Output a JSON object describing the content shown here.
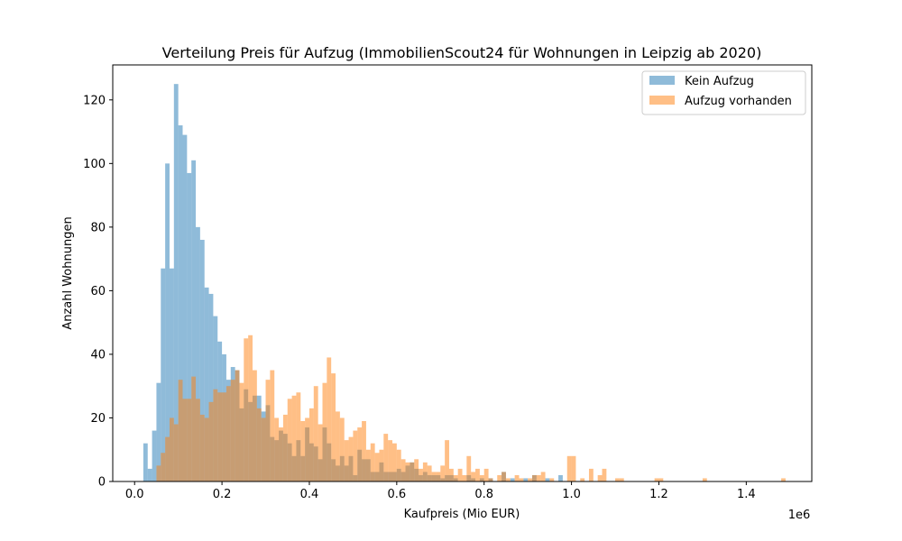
{
  "chart_data": {
    "type": "histogram",
    "title": "Verteilung Preis für Aufzug (ImmobilienScout24 für Wohnungen in Leipzig ab 2020)",
    "xlabel": "Kaufpreis (Mio EUR)",
    "ylabel": "Anzahl Wohnungen",
    "x_offset_label": "1e6",
    "xlim": [
      -50000,
      1550000
    ],
    "ylim": [
      0,
      131
    ],
    "x_ticks": [
      0,
      200000,
      400000,
      600000,
      800000,
      1000000,
      1200000,
      1400000
    ],
    "x_tick_labels": [
      "0.0",
      "0.2",
      "0.4",
      "0.6",
      "0.8",
      "1.0",
      "1.2",
      "1.4"
    ],
    "y_ticks": [
      0,
      20,
      40,
      60,
      80,
      100,
      120
    ],
    "y_tick_labels": [
      "0",
      "20",
      "40",
      "60",
      "80",
      "100",
      "120"
    ],
    "grid": false,
    "legend_position": "top-right",
    "series": [
      {
        "name": "Kein Aufzug",
        "color": "#1f77b4",
        "alpha": 0.5,
        "bins": [
          [
            20000,
            30000,
            12
          ],
          [
            30000,
            40000,
            4
          ],
          [
            40000,
            50000,
            16
          ],
          [
            50000,
            60000,
            31
          ],
          [
            60000,
            70000,
            67
          ],
          [
            70000,
            80000,
            100
          ],
          [
            80000,
            90000,
            67
          ],
          [
            90000,
            100000,
            125
          ],
          [
            100000,
            110000,
            112
          ],
          [
            110000,
            120000,
            109
          ],
          [
            120000,
            130000,
            97
          ],
          [
            130000,
            140000,
            101
          ],
          [
            140000,
            150000,
            80
          ],
          [
            150000,
            160000,
            76
          ],
          [
            160000,
            170000,
            61
          ],
          [
            170000,
            180000,
            59
          ],
          [
            180000,
            190000,
            52
          ],
          [
            190000,
            200000,
            44
          ],
          [
            200000,
            210000,
            40
          ],
          [
            210000,
            220000,
            32
          ],
          [
            220000,
            230000,
            36
          ],
          [
            230000,
            240000,
            35
          ],
          [
            240000,
            250000,
            23
          ],
          [
            250000,
            260000,
            29
          ],
          [
            260000,
            270000,
            25
          ],
          [
            270000,
            280000,
            27
          ],
          [
            280000,
            290000,
            27
          ],
          [
            290000,
            300000,
            22
          ],
          [
            300000,
            310000,
            24
          ],
          [
            310000,
            320000,
            14
          ],
          [
            320000,
            330000,
            13
          ],
          [
            330000,
            340000,
            16
          ],
          [
            340000,
            350000,
            15
          ],
          [
            350000,
            360000,
            12
          ],
          [
            360000,
            370000,
            8
          ],
          [
            370000,
            380000,
            13
          ],
          [
            380000,
            390000,
            8
          ],
          [
            390000,
            400000,
            17
          ],
          [
            400000,
            410000,
            12
          ],
          [
            410000,
            420000,
            11
          ],
          [
            420000,
            430000,
            7
          ],
          [
            430000,
            440000,
            17
          ],
          [
            440000,
            450000,
            12
          ],
          [
            450000,
            460000,
            7
          ],
          [
            460000,
            470000,
            5
          ],
          [
            470000,
            480000,
            8
          ],
          [
            480000,
            490000,
            5
          ],
          [
            490000,
            500000,
            8
          ],
          [
            500000,
            510000,
            2
          ],
          [
            510000,
            520000,
            10
          ],
          [
            520000,
            530000,
            7
          ],
          [
            530000,
            540000,
            7
          ],
          [
            540000,
            550000,
            3
          ],
          [
            550000,
            560000,
            3
          ],
          [
            560000,
            570000,
            6
          ],
          [
            570000,
            580000,
            3
          ],
          [
            580000,
            590000,
            3
          ],
          [
            590000,
            600000,
            3
          ],
          [
            600000,
            610000,
            4
          ],
          [
            610000,
            620000,
            3
          ],
          [
            620000,
            630000,
            5
          ],
          [
            630000,
            640000,
            6
          ],
          [
            640000,
            650000,
            4
          ],
          [
            650000,
            660000,
            2
          ],
          [
            660000,
            670000,
            3
          ],
          [
            670000,
            680000,
            2
          ],
          [
            680000,
            690000,
            2
          ],
          [
            690000,
            700000,
            2
          ],
          [
            700000,
            710000,
            1
          ],
          [
            710000,
            720000,
            2
          ],
          [
            720000,
            730000,
            2
          ],
          [
            730000,
            740000,
            1
          ],
          [
            760000,
            770000,
            2
          ],
          [
            770000,
            780000,
            1
          ],
          [
            790000,
            800000,
            1
          ],
          [
            810000,
            820000,
            1
          ],
          [
            840000,
            850000,
            3
          ],
          [
            860000,
            870000,
            1
          ],
          [
            890000,
            900000,
            1
          ],
          [
            910000,
            920000,
            2
          ],
          [
            940000,
            950000,
            1
          ],
          [
            970000,
            980000,
            2
          ]
        ]
      },
      {
        "name": "Aufzug vorhanden",
        "color": "#ff7f0e",
        "alpha": 0.5,
        "bins": [
          [
            50000,
            60000,
            5
          ],
          [
            60000,
            70000,
            9
          ],
          [
            70000,
            80000,
            14
          ],
          [
            80000,
            90000,
            20
          ],
          [
            90000,
            100000,
            18
          ],
          [
            100000,
            110000,
            32
          ],
          [
            110000,
            120000,
            26
          ],
          [
            120000,
            130000,
            26
          ],
          [
            130000,
            140000,
            33
          ],
          [
            140000,
            150000,
            26
          ],
          [
            150000,
            160000,
            21
          ],
          [
            160000,
            170000,
            20
          ],
          [
            170000,
            180000,
            25
          ],
          [
            180000,
            190000,
            29
          ],
          [
            190000,
            200000,
            28
          ],
          [
            200000,
            210000,
            28
          ],
          [
            210000,
            220000,
            30
          ],
          [
            220000,
            230000,
            32
          ],
          [
            230000,
            240000,
            35
          ],
          [
            240000,
            250000,
            31
          ],
          [
            250000,
            260000,
            45
          ],
          [
            260000,
            270000,
            46
          ],
          [
            270000,
            280000,
            35
          ],
          [
            280000,
            290000,
            23
          ],
          [
            290000,
            300000,
            20
          ],
          [
            300000,
            310000,
            32
          ],
          [
            310000,
            320000,
            35
          ],
          [
            320000,
            330000,
            20
          ],
          [
            330000,
            340000,
            17
          ],
          [
            340000,
            350000,
            21
          ],
          [
            350000,
            360000,
            26
          ],
          [
            360000,
            370000,
            27
          ],
          [
            370000,
            380000,
            28
          ],
          [
            380000,
            390000,
            19
          ],
          [
            390000,
            400000,
            20
          ],
          [
            400000,
            410000,
            23
          ],
          [
            410000,
            420000,
            30
          ],
          [
            420000,
            430000,
            18
          ],
          [
            430000,
            440000,
            31
          ],
          [
            440000,
            450000,
            39
          ],
          [
            450000,
            460000,
            34
          ],
          [
            460000,
            470000,
            22
          ],
          [
            470000,
            480000,
            20
          ],
          [
            480000,
            490000,
            13
          ],
          [
            490000,
            500000,
            14
          ],
          [
            500000,
            510000,
            16
          ],
          [
            510000,
            520000,
            17
          ],
          [
            520000,
            530000,
            19
          ],
          [
            530000,
            540000,
            10
          ],
          [
            540000,
            550000,
            12
          ],
          [
            550000,
            560000,
            9
          ],
          [
            560000,
            570000,
            10
          ],
          [
            570000,
            580000,
            15
          ],
          [
            580000,
            590000,
            13
          ],
          [
            590000,
            600000,
            12
          ],
          [
            600000,
            610000,
            10
          ],
          [
            610000,
            620000,
            7
          ],
          [
            620000,
            630000,
            6
          ],
          [
            630000,
            640000,
            6
          ],
          [
            640000,
            650000,
            7
          ],
          [
            650000,
            660000,
            4
          ],
          [
            660000,
            670000,
            6
          ],
          [
            670000,
            680000,
            5
          ],
          [
            680000,
            690000,
            3
          ],
          [
            690000,
            700000,
            3
          ],
          [
            700000,
            710000,
            5
          ],
          [
            710000,
            720000,
            13
          ],
          [
            720000,
            730000,
            4
          ],
          [
            730000,
            740000,
            2
          ],
          [
            740000,
            750000,
            4
          ],
          [
            750000,
            760000,
            2
          ],
          [
            760000,
            770000,
            8
          ],
          [
            770000,
            780000,
            3
          ],
          [
            780000,
            790000,
            4
          ],
          [
            790000,
            800000,
            2
          ],
          [
            800000,
            810000,
            4
          ],
          [
            810000,
            820000,
            1
          ],
          [
            830000,
            840000,
            2
          ],
          [
            840000,
            850000,
            3
          ],
          [
            850000,
            860000,
            1
          ],
          [
            870000,
            880000,
            2
          ],
          [
            880000,
            890000,
            1
          ],
          [
            900000,
            910000,
            1
          ],
          [
            910000,
            920000,
            2
          ],
          [
            920000,
            930000,
            2
          ],
          [
            930000,
            940000,
            3
          ],
          [
            950000,
            960000,
            1
          ],
          [
            990000,
            1000000,
            8
          ],
          [
            1000000,
            1010000,
            8
          ],
          [
            1020000,
            1030000,
            1
          ],
          [
            1040000,
            1050000,
            4
          ],
          [
            1060000,
            1070000,
            2
          ],
          [
            1070000,
            1080000,
            4
          ],
          [
            1100000,
            1110000,
            1
          ],
          [
            1110000,
            1120000,
            1
          ],
          [
            1190000,
            1200000,
            1
          ],
          [
            1200000,
            1210000,
            1
          ],
          [
            1300000,
            1310000,
            1
          ],
          [
            1480000,
            1490000,
            1
          ]
        ]
      }
    ]
  }
}
